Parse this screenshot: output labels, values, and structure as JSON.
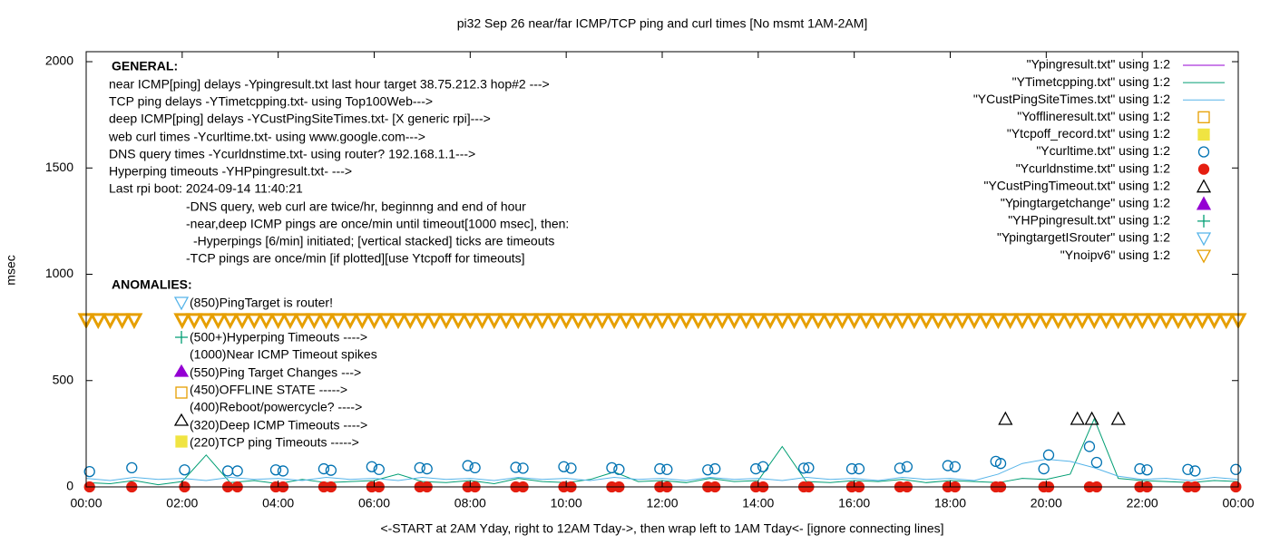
{
  "chart_data": {
    "type": "line",
    "title": "pi32 Sep 26  near/far ICMP/TCP ping and curl times [No msmt 1AM-2AM]",
    "y_label": "msec",
    "x_label": "<-START at 2AM Yday, right to 12AM Tday->, then wrap left to 1AM Tday<- [ignore connecting lines]",
    "xlim": [
      0,
      24
    ],
    "ylim": [
      0,
      2047
    ],
    "xticks": [
      {
        "value": 0,
        "label": "00:00"
      },
      {
        "value": 2,
        "label": "02:00"
      },
      {
        "value": 4,
        "label": "04:00"
      },
      {
        "value": 6,
        "label": "06:00"
      },
      {
        "value": 8,
        "label": "08:00"
      },
      {
        "value": 10,
        "label": "10:00"
      },
      {
        "value": 12,
        "label": "12:00"
      },
      {
        "value": 14,
        "label": "14:00"
      },
      {
        "value": 16,
        "label": "16:00"
      },
      {
        "value": 18,
        "label": "18:00"
      },
      {
        "value": 20,
        "label": "20:00"
      },
      {
        "value": 22,
        "label": "22:00"
      },
      {
        "value": 24,
        "label": "00:00"
      }
    ],
    "yticks": [
      0,
      500,
      1000,
      1500,
      2000
    ],
    "general_lines": [
      "GENERAL:",
      "near ICMP[ping] delays -Ypingresult.txt last hour target 38.75.212.3 hop#2 --->",
      "TCP ping delays -YTimetcpping.txt- using Top100Web--->",
      "deep ICMP[ping] delays -YCustPingSiteTimes.txt- [X generic rpi]--->",
      "web curl times -Ycurltime.txt- using www.google.com--->",
      "DNS query times -Ycurldnstime.txt- using router? 192.168.1.1--->",
      "Hyperping timeouts -YHPpingresult.txt- --->",
      "Last rpi boot: 2024-09-14 11:40:21",
      "-DNS query, web curl are twice/hr, beginnng and end of hour",
      "-near,deep ICMP pings are once/min until timeout[1000 msec], then:",
      "-Hyperpings [6/min] initiated; [vertical stacked] ticks are timeouts",
      "-TCP pings are once/min [if plotted][use Ytcpoff for timeouts]"
    ],
    "anomaly_lines": [
      "ANOMALIES:",
      "(850)PingTarget is router!",
      "(500+)Hyperping Timeouts ---->",
      "(1000)Near ICMP Timeout spikes",
      "(550)Ping Target Changes --->",
      "(450)OFFLINE STATE ----->",
      "(400)Reboot/powercycle? ---->",
      "(320)Deep ICMP Timeouts ---->",
      "(220)TCP ping Timeouts ----->"
    ],
    "series": [
      {
        "name": "\"Ypingresult.txt\" using 1:2",
        "color": "#9400d3",
        "x": [],
        "values": []
      },
      {
        "name": "\"YTimetcpping.txt\" using 1:2",
        "color": "#009e73",
        "x": [
          0,
          0.5,
          1,
          1.5,
          2,
          2.5,
          3,
          3.5,
          4,
          4.5,
          5,
          5.5,
          6,
          6.5,
          7,
          7.5,
          8,
          8.5,
          9,
          9.5,
          10,
          10.5,
          11,
          11.5,
          12,
          12.5,
          13,
          13.5,
          14,
          14.5,
          15,
          15.5,
          16,
          16.5,
          17,
          17.5,
          18,
          18.5,
          19,
          19.5,
          20,
          20.5,
          21,
          21.5,
          22,
          22.5,
          23,
          23.5,
          24
        ],
        "values": [
          20,
          15,
          30,
          10,
          25,
          150,
          20,
          30,
          15,
          35,
          20,
          25,
          30,
          60,
          25,
          20,
          30,
          15,
          40,
          25,
          20,
          35,
          70,
          25,
          30,
          20,
          40,
          25,
          30,
          190,
          25,
          20,
          30,
          25,
          35,
          20,
          30,
          25,
          20,
          40,
          35,
          60,
          320,
          40,
          30,
          25,
          20,
          30,
          25
        ]
      },
      {
        "name": "\"YCustPingSiteTimes.txt\" using 1:2",
        "color": "#56b4e9",
        "x": [
          0,
          0.5,
          1,
          1.5,
          2,
          2.5,
          3,
          3.5,
          4,
          4.5,
          5,
          5.5,
          6,
          6.5,
          7,
          7.5,
          8,
          8.5,
          9,
          9.5,
          10,
          10.5,
          11,
          11.5,
          12,
          12.5,
          13,
          13.5,
          14,
          14.5,
          15,
          15.5,
          16,
          16.5,
          17,
          17.5,
          18,
          18.5,
          19,
          19.5,
          20,
          20.5,
          21,
          21.5,
          22,
          22.5,
          23,
          23.5,
          24
        ],
        "values": [
          40,
          30,
          45,
          35,
          40,
          30,
          45,
          35,
          40,
          30,
          45,
          35,
          40,
          30,
          45,
          35,
          40,
          30,
          45,
          35,
          40,
          30,
          45,
          35,
          40,
          30,
          45,
          35,
          40,
          30,
          45,
          35,
          40,
          30,
          45,
          35,
          40,
          30,
          60,
          110,
          130,
          120,
          90,
          50,
          35,
          40,
          30,
          45,
          35
        ]
      },
      {
        "name": "\"Yofflineresult.txt\" using 1:2",
        "color": "#e69f00",
        "x": [],
        "values": []
      },
      {
        "name": "\"Ytcpoff_record.txt\" using 1:2",
        "color": "#f0e442",
        "x": [],
        "values": []
      },
      {
        "name": "\"Ycurltime.txt\" using 1:2",
        "color": "#0072b2",
        "x": [
          0.07,
          0.95,
          2.05,
          2.95,
          3.15,
          3.95,
          4.1,
          4.95,
          5.1,
          5.95,
          6.1,
          6.95,
          7.1,
          7.95,
          8.1,
          8.95,
          9.1,
          9.95,
          10.1,
          10.95,
          11.1,
          11.95,
          12.1,
          12.95,
          13.1,
          13.95,
          14.1,
          14.95,
          15.05,
          15.95,
          16.1,
          16.95,
          17.1,
          17.95,
          18.1,
          18.95,
          19.05,
          19.95,
          20.05,
          20.9,
          21.05,
          21.95,
          22.1,
          22.95,
          23.1,
          23.95
        ],
        "values": [
          72,
          90,
          80,
          75,
          75,
          80,
          75,
          85,
          78,
          95,
          82,
          90,
          85,
          100,
          90,
          92,
          88,
          95,
          88,
          90,
          82,
          85,
          82,
          80,
          85,
          85,
          95,
          88,
          90,
          85,
          85,
          88,
          95,
          100,
          95,
          120,
          110,
          85,
          150,
          190,
          115,
          85,
          80,
          82,
          75,
          82
        ]
      },
      {
        "name": "\"Ycurldnstime.txt\" using 1:2",
        "color": "#e51e10",
        "x": [
          0.07,
          0.95,
          2.05,
          2.95,
          3.15,
          3.95,
          4.1,
          4.95,
          5.1,
          5.95,
          6.1,
          6.95,
          7.1,
          7.95,
          8.1,
          8.95,
          9.1,
          9.95,
          10.1,
          10.95,
          11.1,
          11.95,
          12.1,
          12.95,
          13.1,
          13.95,
          14.1,
          14.95,
          15.05,
          15.95,
          16.1,
          16.95,
          17.1,
          17.95,
          18.1,
          18.95,
          19.05,
          19.95,
          20.05,
          20.9,
          21.05,
          21.95,
          22.1,
          22.95,
          23.1,
          23.95
        ],
        "values": [
          0,
          0,
          0,
          0,
          0,
          0,
          0,
          0,
          0,
          0,
          0,
          0,
          0,
          0,
          0,
          0,
          0,
          0,
          0,
          0,
          0,
          0,
          0,
          0,
          0,
          0,
          0,
          0,
          0,
          0,
          0,
          0,
          0,
          0,
          0,
          0,
          0,
          0,
          0,
          0,
          0,
          0,
          0,
          0,
          0,
          0
        ]
      },
      {
        "name": "\"YCustPingTimeout.txt\" using 1:2",
        "color": "#000000",
        "x": [
          19.15,
          20.65,
          20.95,
          21.5
        ],
        "values": [
          320,
          320,
          320,
          320
        ]
      },
      {
        "name": "\"Ypingtargetchange\" using 1:2",
        "color": "#9400d3",
        "x": [],
        "values": []
      },
      {
        "name": "\"YHPpingresult.txt\" using 1:2",
        "color": "#009e73",
        "x": [],
        "values": []
      },
      {
        "name": "\"YpingtargetISrouter\" using 1:2",
        "color": "#56b4e9",
        "x": [],
        "values": []
      },
      {
        "name": "\"Ynoipv6\" using 1:2",
        "color": "#e69f00",
        "x": [
          0,
          0.25,
          0.5,
          0.75,
          1,
          2,
          2.25,
          2.5,
          2.75,
          3,
          3.25,
          3.5,
          3.75,
          4,
          4.25,
          4.5,
          4.75,
          5,
          5.25,
          5.5,
          5.75,
          6,
          6.25,
          6.5,
          6.75,
          7,
          7.25,
          7.5,
          7.75,
          8,
          8.25,
          8.5,
          8.75,
          9,
          9.25,
          9.5,
          9.75,
          10,
          10.25,
          10.5,
          10.75,
          11,
          11.25,
          11.5,
          11.75,
          12,
          12.25,
          12.5,
          12.75,
          13,
          13.25,
          13.5,
          13.75,
          14,
          14.25,
          14.5,
          14.75,
          15,
          15.25,
          15.5,
          15.75,
          16,
          16.25,
          16.5,
          16.75,
          17,
          17.25,
          17.5,
          17.75,
          18,
          18.25,
          18.5,
          18.75,
          19,
          19.25,
          19.5,
          19.75,
          20,
          20.25,
          20.5,
          20.75,
          21,
          21.25,
          21.5,
          21.75,
          22,
          22.25,
          22.5,
          22.75,
          23,
          23.25,
          23.5,
          23.75,
          24
        ],
        "values": [
          785,
          785,
          785,
          785,
          785,
          785,
          785,
          785,
          785,
          785,
          785,
          785,
          785,
          785,
          785,
          785,
          785,
          785,
          785,
          785,
          785,
          785,
          785,
          785,
          785,
          785,
          785,
          785,
          785,
          785,
          785,
          785,
          785,
          785,
          785,
          785,
          785,
          785,
          785,
          785,
          785,
          785,
          785,
          785,
          785,
          785,
          785,
          785,
          785,
          785,
          785,
          785,
          785,
          785,
          785,
          785,
          785,
          785,
          785,
          785,
          785,
          785,
          785,
          785,
          785,
          785,
          785,
          785,
          785,
          785,
          785,
          785,
          785,
          785,
          785,
          785,
          785,
          785,
          785,
          785,
          785,
          785,
          785,
          785,
          785,
          785,
          785,
          785,
          785,
          785,
          785,
          785,
          785,
          785
        ]
      }
    ]
  }
}
